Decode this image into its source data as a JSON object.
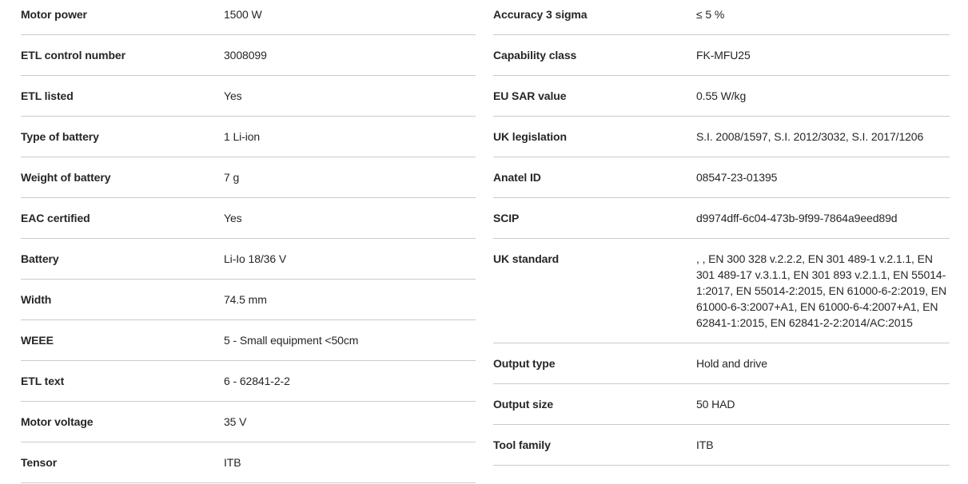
{
  "colors": {
    "background": "#ffffff",
    "text": "#262626",
    "divider": "#cbcbcb"
  },
  "spec_table": {
    "left_rows": [
      {
        "label": "Motor power",
        "value": "1500 W"
      },
      {
        "label": "ETL control number",
        "value": "3008099"
      },
      {
        "label": "ETL listed",
        "value": "Yes"
      },
      {
        "label": "Type of battery",
        "value": "1 Li-ion"
      },
      {
        "label": "Weight of battery",
        "value": "7 g"
      },
      {
        "label": "EAC certified",
        "value": "Yes"
      },
      {
        "label": "Battery",
        "value": "Li-Io 18/36 V"
      },
      {
        "label": "Width",
        "value": "74.5 mm"
      },
      {
        "label": "WEEE",
        "value": "5 - Small equipment <50cm"
      },
      {
        "label": "ETL text",
        "value": "6 - 62841-2-2"
      },
      {
        "label": "Motor voltage",
        "value": "35 V"
      },
      {
        "label": "Tensor",
        "value": "ITB"
      }
    ],
    "right_rows": [
      {
        "label": "Accuracy 3 sigma",
        "value": "≤ 5 %"
      },
      {
        "label": "Capability class",
        "value": "FK-MFU25"
      },
      {
        "label": "EU SAR value",
        "value": "0.55 W/kg"
      },
      {
        "label": "UK legislation",
        "value": "S.I. 2008/1597, S.I. 2012/3032, S.I. 2017/1206"
      },
      {
        "label": "Anatel ID",
        "value": "08547-23-01395"
      },
      {
        "label": "SCIP",
        "value": "d9974dff-6c04-473b-9f99-7864a9eed89d"
      },
      {
        "label": "UK standard",
        "value": ", , EN 300 328 v.2.2.2, EN 301 489-1 v.2.1.1, EN 301 489-17 v.3.1.1, EN 301 893 v.2.1.1, EN 55014-1:2017, EN 55014-2:2015, EN 61000-6-2:2019, EN 61000-6-3:2007+A1, EN 61000-6-4:2007+A1, EN 62841-1:2015, EN 62841-2-2:2014/AC:2015"
      },
      {
        "label": "Output type",
        "value": "Hold and drive"
      },
      {
        "label": "Output size",
        "value": "50 HAD"
      },
      {
        "label": "Tool family",
        "value": "ITB"
      }
    ]
  }
}
